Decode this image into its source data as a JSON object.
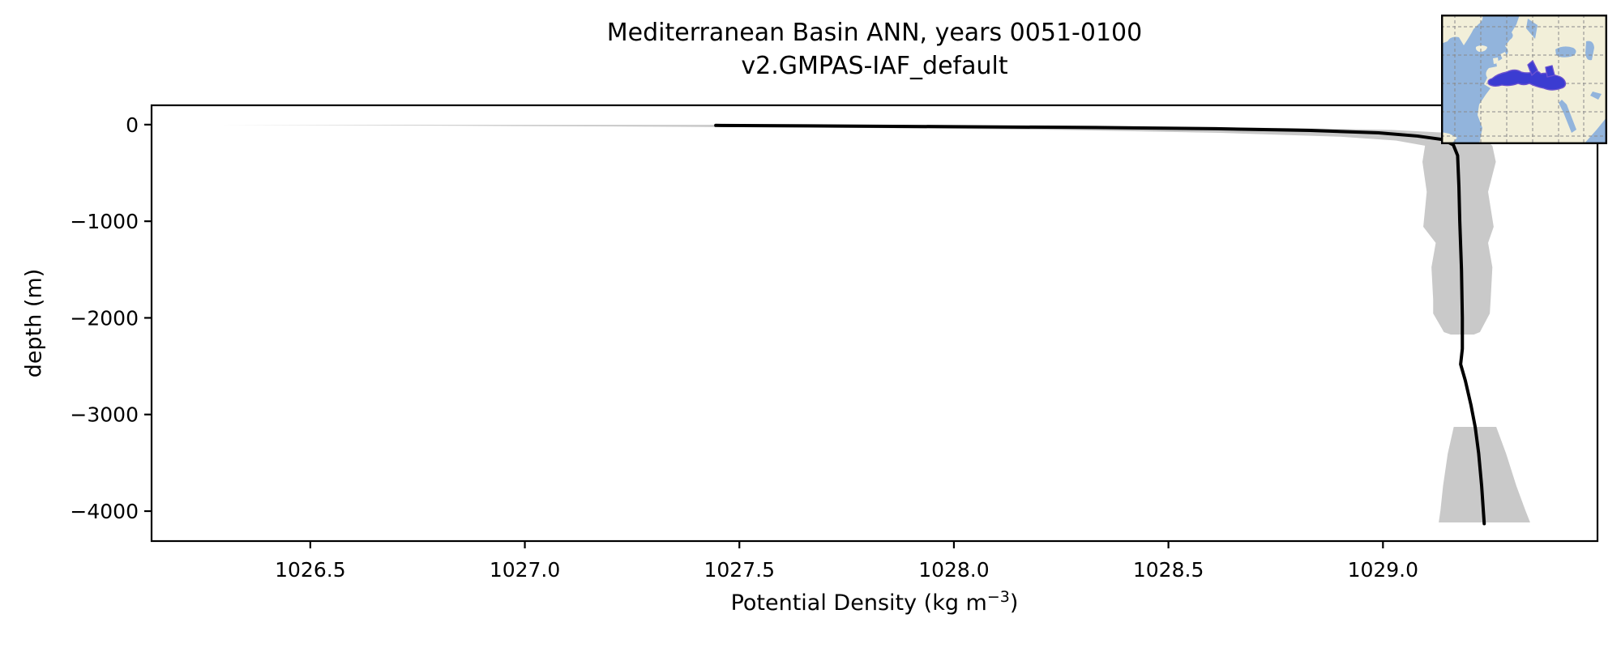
{
  "chart_data": {
    "type": "line",
    "title_line1": "Mediterranean Basin ANN, years 0051-0100",
    "title_line2": "v2.GMPAS-IAF_default",
    "ylabel": "depth (m)",
    "xlabel_prefix": "Potential Density (kg m",
    "xlabel_sup": "−3",
    "xlabel_suffix": ")",
    "xlim": [
      1026.13,
      1029.5
    ],
    "ylim": [
      -4310,
      200
    ],
    "grid": false,
    "legend": "none",
    "x_ticks": [
      {
        "v": 1026.5,
        "label": "1026.5"
      },
      {
        "v": 1027.0,
        "label": "1027.0"
      },
      {
        "v": 1027.5,
        "label": "1027.5"
      },
      {
        "v": 1028.0,
        "label": "1028.0"
      },
      {
        "v": 1028.5,
        "label": "1028.5"
      },
      {
        "v": 1029.0,
        "label": "1029.0"
      }
    ],
    "y_ticks": [
      {
        "v": 0,
        "label": "0"
      },
      {
        "v": -1000,
        "label": "−1000"
      },
      {
        "v": -2000,
        "label": "−2000"
      },
      {
        "v": -3000,
        "label": "−3000"
      },
      {
        "v": -4000,
        "label": "−4000"
      }
    ],
    "series": [
      {
        "color": "#000000",
        "width": 4,
        "points": [
          [
            1027.445,
            -8
          ],
          [
            1027.66,
            -13
          ],
          [
            1028.0,
            -21
          ],
          [
            1028.33,
            -30
          ],
          [
            1028.61,
            -42
          ],
          [
            1028.83,
            -60
          ],
          [
            1028.99,
            -85
          ],
          [
            1029.08,
            -118
          ],
          [
            1029.14,
            -155
          ],
          [
            1029.164,
            -210
          ],
          [
            1029.174,
            -320
          ],
          [
            1029.177,
            -640
          ],
          [
            1029.179,
            -1000
          ],
          [
            1029.183,
            -1500
          ],
          [
            1029.185,
            -2000
          ],
          [
            1029.185,
            -2320
          ],
          [
            1029.181,
            -2480
          ],
          [
            1029.192,
            -2650
          ],
          [
            1029.205,
            -2900
          ],
          [
            1029.215,
            -3130
          ],
          [
            1029.223,
            -3400
          ],
          [
            1029.23,
            -3740
          ],
          [
            1029.236,
            -4130
          ]
        ]
      }
    ],
    "envelope": {
      "color": "#c9c9c9",
      "segments": [
        [
          [
            -2,
            1026.29,
            1027.45
          ],
          [
            -12,
            1026.85,
            1028.05
          ],
          [
            -22,
            1027.35,
            1028.45
          ],
          [
            -35,
            1027.8,
            1028.78
          ],
          [
            -55,
            1028.25,
            1029.02
          ],
          [
            -85,
            1028.62,
            1029.15
          ],
          [
            -125,
            1028.9,
            1029.21
          ],
          [
            -165,
            1029.03,
            1029.24
          ],
          [
            -218,
            1029.098,
            1029.255
          ],
          [
            -386,
            1029.092,
            1029.263
          ],
          [
            -696,
            1029.102,
            1029.245
          ],
          [
            -1057,
            1029.094,
            1029.258
          ],
          [
            -1224,
            1029.123,
            1029.245
          ],
          [
            -1476,
            1029.113,
            1029.255
          ],
          [
            -1811,
            1029.117,
            1029.251
          ],
          [
            -1954,
            1029.117,
            1029.249
          ],
          [
            -2147,
            1029.142,
            1029.226
          ],
          [
            -2172,
            1029.158,
            1029.212
          ]
        ],
        [
          [
            -3128,
            1029.165,
            1029.264
          ],
          [
            -3405,
            1029.151,
            1029.287
          ],
          [
            -3740,
            1029.14,
            1029.311
          ],
          [
            -3992,
            1029.134,
            1029.332
          ],
          [
            -4117,
            1029.13,
            1029.343
          ]
        ]
      ]
    },
    "inset": {
      "ocean": "#92b4dc",
      "land": "#f2efd9",
      "highlight": "#3b3cd1",
      "highlight_stroke": "#6a52d0",
      "gridline": "#8a8a8a",
      "border": "#000000"
    }
  },
  "axis_style": {
    "tick_color": "#000000",
    "spine_color": "#000000",
    "tick_label_size": 25
  }
}
